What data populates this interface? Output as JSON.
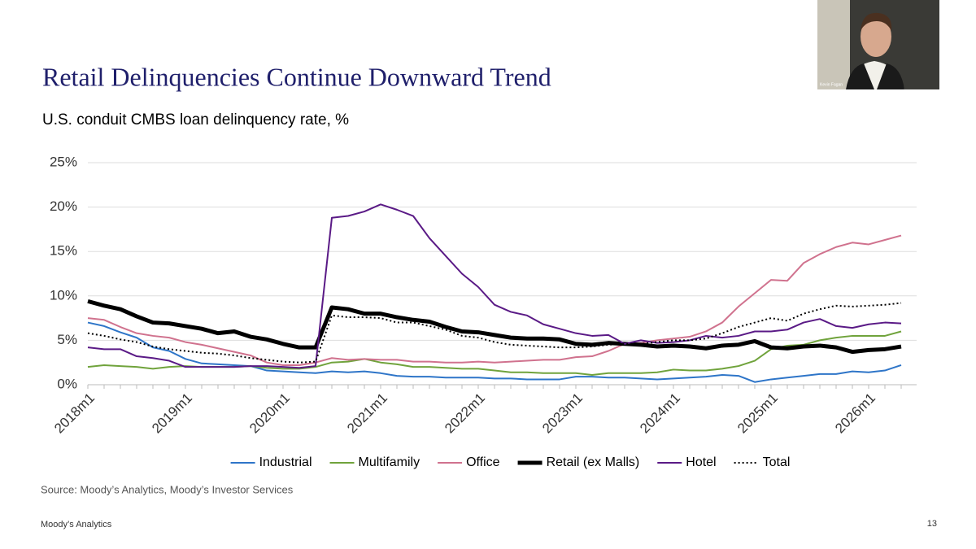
{
  "header": {
    "title": "Retail Delinquencies Continue Downward Trend",
    "subtitle": "U.S. conduit CMBS loan delinquency rate, %"
  },
  "chart_data": {
    "type": "line",
    "categories": [
      "2018m1",
      null,
      null,
      null,
      null,
      null,
      "2019m1",
      null,
      null,
      null,
      null,
      null,
      "2020m1",
      null,
      null,
      null,
      null,
      null,
      "2021m1",
      null,
      null,
      null,
      null,
      null,
      "2022m1",
      null,
      null,
      null,
      null,
      null,
      "2023m1",
      null,
      null,
      null,
      null,
      null,
      "2024m1",
      null,
      null,
      null,
      null,
      null,
      "2025m1",
      null,
      null,
      null,
      null,
      null,
      "2026m1",
      null,
      null
    ],
    "ylim": [
      0,
      25
    ],
    "yticks": [
      {
        "value": 0,
        "label": "0%"
      },
      {
        "value": 5,
        "label": "5%"
      },
      {
        "value": 10,
        "label": "10%"
      },
      {
        "value": 15,
        "label": "15%"
      },
      {
        "value": 20,
        "label": "20%"
      },
      {
        "value": 25,
        "label": "25%"
      }
    ],
    "grid": true,
    "legend": "bottom",
    "series": [
      {
        "name": "Industrial",
        "color": "#2e75c8",
        "values": [
          7.0,
          6.6,
          5.9,
          5.3,
          4.2,
          3.8,
          2.9,
          2.4,
          2.3,
          2.2,
          2.1,
          1.6,
          1.5,
          1.4,
          1.3,
          1.5,
          1.4,
          1.5,
          1.3,
          1.0,
          0.9,
          0.9,
          0.8,
          0.8,
          0.8,
          0.7,
          0.7,
          0.6,
          0.6,
          0.6,
          0.9,
          0.9,
          0.8,
          0.8,
          0.7,
          0.6,
          0.7,
          0.8,
          0.9,
          1.1,
          1.0,
          0.3,
          0.6,
          0.8,
          1.0,
          1.2,
          1.2,
          1.5,
          1.4,
          1.6,
          2.2
        ]
      },
      {
        "name": "Multifamily",
        "color": "#70a33c",
        "values": [
          2.0,
          2.2,
          2.1,
          2.0,
          1.8,
          2.0,
          2.1,
          2.0,
          2.0,
          2.0,
          2.1,
          1.9,
          1.8,
          1.8,
          2.0,
          2.5,
          2.6,
          2.9,
          2.5,
          2.3,
          2.0,
          2.0,
          1.9,
          1.8,
          1.8,
          1.6,
          1.4,
          1.4,
          1.3,
          1.3,
          1.3,
          1.1,
          1.3,
          1.3,
          1.3,
          1.4,
          1.7,
          1.6,
          1.6,
          1.8,
          2.1,
          2.7,
          4.0,
          4.4,
          4.5,
          5.0,
          5.3,
          5.5,
          5.5,
          5.5,
          6.0
        ]
      },
      {
        "name": "Office",
        "color": "#d0728e",
        "values": [
          7.5,
          7.3,
          6.5,
          5.8,
          5.5,
          5.3,
          4.8,
          4.5,
          4.1,
          3.7,
          3.3,
          2.5,
          2.2,
          2.2,
          2.5,
          3.0,
          2.8,
          2.9,
          2.8,
          2.8,
          2.6,
          2.6,
          2.5,
          2.5,
          2.6,
          2.5,
          2.6,
          2.7,
          2.8,
          2.8,
          3.1,
          3.2,
          3.8,
          4.6,
          4.7,
          5.0,
          5.2,
          5.4,
          6.0,
          7.0,
          8.8,
          10.3,
          11.8,
          11.7,
          13.7,
          14.7,
          15.5,
          16.0,
          15.8,
          16.3,
          16.8
        ]
      },
      {
        "name": "Retail (ex Malls)",
        "color": "#000000",
        "weight": "bold",
        "values": [
          9.4,
          8.9,
          8.5,
          7.7,
          7.0,
          6.9,
          6.6,
          6.3,
          5.8,
          6.0,
          5.4,
          5.1,
          4.6,
          4.2,
          4.2,
          8.7,
          8.5,
          8.0,
          8.0,
          7.6,
          7.3,
          7.1,
          6.5,
          6.0,
          5.9,
          5.6,
          5.3,
          5.2,
          5.2,
          5.1,
          4.6,
          4.5,
          4.7,
          4.6,
          4.5,
          4.3,
          4.4,
          4.3,
          4.1,
          4.4,
          4.5,
          4.9,
          4.2,
          4.1,
          4.3,
          4.4,
          4.2,
          3.7,
          3.9,
          4.0,
          4.3
        ]
      },
      {
        "name": "Hotel",
        "color": "#5a1a86",
        "values": [
          4.2,
          4.0,
          4.0,
          3.2,
          3.0,
          2.7,
          2.0,
          2.0,
          2.0,
          2.0,
          2.1,
          2.1,
          2.0,
          1.9,
          2.1,
          18.8,
          19.0,
          19.5,
          20.3,
          19.7,
          19.0,
          16.5,
          14.5,
          12.5,
          11.0,
          9.0,
          8.2,
          7.8,
          6.8,
          6.3,
          5.8,
          5.5,
          5.6,
          4.6,
          5.0,
          4.7,
          4.8,
          5.0,
          5.5,
          5.3,
          5.5,
          6.0,
          6.0,
          6.2,
          7.0,
          7.4,
          6.6,
          6.4,
          6.8,
          7.0,
          6.9
        ]
      },
      {
        "name": "Total",
        "color": "#000000",
        "style": "dotted",
        "values": [
          5.8,
          5.5,
          5.1,
          4.8,
          4.3,
          4.0,
          3.8,
          3.6,
          3.5,
          3.3,
          3.0,
          2.8,
          2.6,
          2.5,
          2.6,
          7.8,
          7.6,
          7.6,
          7.5,
          7.0,
          7.0,
          6.6,
          6.2,
          5.5,
          5.3,
          4.8,
          4.5,
          4.4,
          4.3,
          4.2,
          4.2,
          4.3,
          4.5,
          4.6,
          4.6,
          4.8,
          5.0,
          5.0,
          5.2,
          5.8,
          6.5,
          7.0,
          7.5,
          7.2,
          8.0,
          8.5,
          8.9,
          8.8,
          8.9,
          9.0,
          9.2
        ]
      }
    ]
  },
  "source": "Source: Moody’s Analytics, Moody’s Investor Services",
  "footer": {
    "brand": "Moody’s Analytics",
    "page": "13"
  },
  "webcam": {
    "name": "Kevin Fagan"
  }
}
